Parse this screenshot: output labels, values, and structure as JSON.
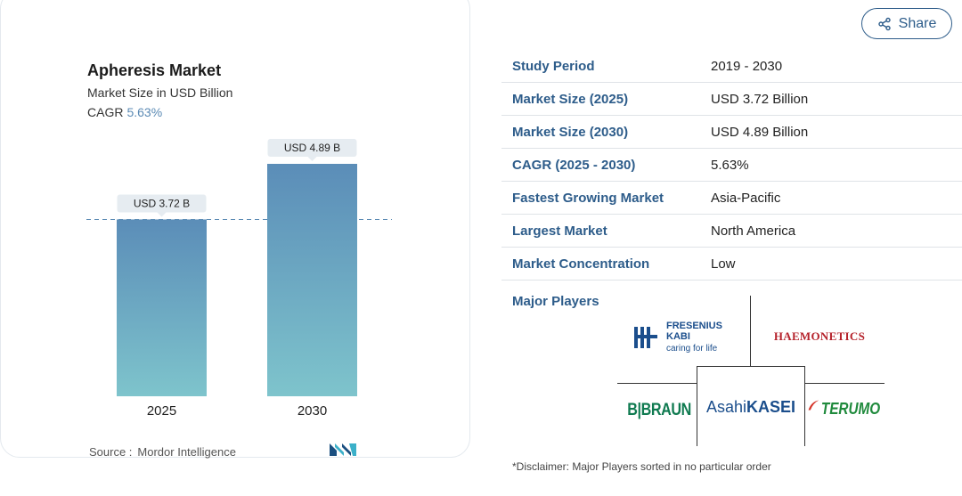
{
  "chart": {
    "title": "Apheresis Market",
    "subtitle": "Market Size in USD Billion",
    "cagr_label": "CAGR",
    "cagr_value": "5.63%",
    "source_label": "Source :",
    "source_value": "Mordor Intelligence"
  },
  "chart_data": {
    "type": "bar",
    "title": "Apheresis Market",
    "subtitle": "Market Size in USD Billion",
    "categories": [
      "2025",
      "2030"
    ],
    "values": [
      3.72,
      4.89
    ],
    "data_labels": [
      "USD 3.72 B",
      "USD 4.89 B"
    ],
    "ylabel": "",
    "xlabel": "",
    "ylim": [
      0,
      4.89
    ],
    "reference_line_value": 3.72,
    "grid": false,
    "colors": {
      "bar_top": "#5b8db8",
      "bar_bottom": "#7ec4cc",
      "label_bg": "#e6ecf1",
      "dash": "#5b8ab4"
    }
  },
  "share": {
    "label": "Share",
    "icon": "share-icon"
  },
  "info": {
    "rows": [
      {
        "key": "Study Period",
        "value": "2019 - 2030"
      },
      {
        "key": "Market Size (2025)",
        "value": "USD 3.72 Billion"
      },
      {
        "key": "Market Size (2030)",
        "value": "USD 4.89 Billion"
      },
      {
        "key": "CAGR (2025 - 2030)",
        "value": "5.63%"
      },
      {
        "key": "Fastest Growing Market",
        "value": "Asia-Pacific"
      },
      {
        "key": "Largest Market",
        "value": "North America"
      },
      {
        "key": "Market Concentration",
        "value": "Low"
      }
    ]
  },
  "players": {
    "title": "Major Players",
    "fresenius": {
      "line1": "FRESENIUS",
      "line2": "KABI",
      "tagline": "caring for life"
    },
    "haemonetics": "HAEMONETICS",
    "bbraun": "B|BRAUN",
    "asahi_a": "Asahi",
    "asahi_b": "KASEI",
    "terumo": "TERUMO"
  },
  "disclaimer": "*Disclaimer: Major Players sorted in no particular order",
  "theme": {
    "accent": "#2d5c8a",
    "haemonetics_red": "#b5222b",
    "terumo_green": "#1f8a3c",
    "bbraun_green": "#0f7a50"
  }
}
